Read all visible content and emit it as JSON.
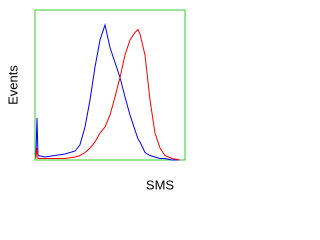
{
  "chart_data": {
    "type": "line",
    "xlabel": "SMS",
    "ylabel": "Events",
    "x": [
      1.06,
      1.13,
      1.2,
      1.85,
      3.4,
      6.3,
      11.7,
      15.8,
      21.5,
      29.3,
      39.8,
      54,
      73.6,
      100,
      136,
      185,
      251,
      341,
      464,
      558,
      631,
      858,
      1166,
      1585,
      2154,
      2929,
      4500,
      7356
    ],
    "series": [
      {
        "color": "#0000ff",
        "values": [
          2,
          28,
          3,
          2,
          3,
          4,
          6,
          10,
          22,
          40,
          62,
          80,
          90,
          75,
          65,
          55,
          42,
          30,
          20,
          14,
          12,
          5,
          3,
          2,
          1,
          1,
          0,
          0
        ]
      },
      {
        "color": "#ff0000",
        "values": [
          1,
          8,
          1,
          1,
          1,
          1,
          2,
          3,
          5,
          8,
          12,
          18,
          22,
          30,
          42,
          55,
          70,
          80,
          85,
          87,
          84,
          70,
          40,
          18,
          8,
          3,
          1,
          0
        ]
      }
    ],
    "xlim": [
      1,
      10000
    ],
    "ylim": [
      0,
      100
    ],
    "xscale": "log",
    "frame_color": "#33cc33"
  }
}
